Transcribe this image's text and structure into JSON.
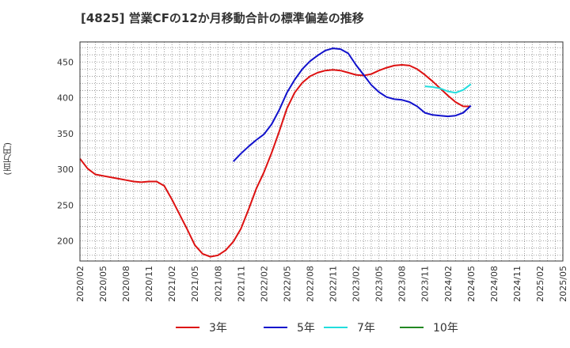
{
  "title": "[4825]  営業CFの12か月移動合計の標準偏差の推移",
  "y_axis_label": "(百万円)",
  "chart_data": {
    "type": "line",
    "x_ticks": [
      "2020/02",
      "2020/05",
      "2020/08",
      "2020/11",
      "2021/02",
      "2021/05",
      "2021/08",
      "2021/11",
      "2022/02",
      "2022/05",
      "2022/08",
      "2022/11",
      "2023/02",
      "2023/05",
      "2023/08",
      "2023/11",
      "2024/02",
      "2024/05",
      "2024/08",
      "2024/11",
      "2025/02",
      "2025/05"
    ],
    "y_ticks": [
      200,
      250,
      300,
      350,
      400,
      450
    ],
    "ylim": [
      172,
      478
    ],
    "grid": true,
    "legend_position": "bottom",
    "series": [
      {
        "name": "3年",
        "color": "#dd1111",
        "points": [
          [
            "2020/02",
            315
          ],
          [
            "2020/03",
            301
          ],
          [
            "2020/04",
            293
          ],
          [
            "2020/05",
            291
          ],
          [
            "2020/06",
            289
          ],
          [
            "2020/07",
            287
          ],
          [
            "2020/08",
            285
          ],
          [
            "2020/09",
            283
          ],
          [
            "2020/10",
            282
          ],
          [
            "2020/11",
            283
          ],
          [
            "2020/12",
            283
          ],
          [
            "2021/01",
            277
          ],
          [
            "2021/02",
            258
          ],
          [
            "2021/03",
            237
          ],
          [
            "2021/04",
            216
          ],
          [
            "2021/05",
            194
          ],
          [
            "2021/06",
            182
          ],
          [
            "2021/07",
            178
          ],
          [
            "2021/08",
            180
          ],
          [
            "2021/09",
            187
          ],
          [
            "2021/10",
            199
          ],
          [
            "2021/11",
            217
          ],
          [
            "2021/12",
            244
          ],
          [
            "2022/01",
            273
          ],
          [
            "2022/02",
            296
          ],
          [
            "2022/03",
            323
          ],
          [
            "2022/04",
            353
          ],
          [
            "2022/05",
            385
          ],
          [
            "2022/06",
            407
          ],
          [
            "2022/07",
            421
          ],
          [
            "2022/08",
            430
          ],
          [
            "2022/09",
            435
          ],
          [
            "2022/10",
            438
          ],
          [
            "2022/11",
            439
          ],
          [
            "2022/12",
            438
          ],
          [
            "2023/01",
            435
          ],
          [
            "2023/02",
            432
          ],
          [
            "2023/03",
            431
          ],
          [
            "2023/04",
            433
          ],
          [
            "2023/05",
            438
          ],
          [
            "2023/06",
            442
          ],
          [
            "2023/07",
            445
          ],
          [
            "2023/08",
            446
          ],
          [
            "2023/09",
            445
          ],
          [
            "2023/10",
            440
          ],
          [
            "2023/11",
            432
          ],
          [
            "2023/12",
            423
          ],
          [
            "2024/01",
            413
          ],
          [
            "2024/02",
            403
          ],
          [
            "2024/03",
            394
          ],
          [
            "2024/04",
            388
          ],
          [
            "2024/05",
            388
          ]
        ]
      },
      {
        "name": "5年",
        "color": "#1111cc",
        "points": [
          [
            "2021/10",
            311
          ],
          [
            "2021/11",
            322
          ],
          [
            "2021/12",
            332
          ],
          [
            "2022/01",
            341
          ],
          [
            "2022/02",
            349
          ],
          [
            "2022/03",
            363
          ],
          [
            "2022/04",
            383
          ],
          [
            "2022/05",
            407
          ],
          [
            "2022/06",
            425
          ],
          [
            "2022/07",
            440
          ],
          [
            "2022/08",
            451
          ],
          [
            "2022/09",
            459
          ],
          [
            "2022/10",
            466
          ],
          [
            "2022/11",
            469
          ],
          [
            "2022/12",
            468
          ],
          [
            "2023/01",
            462
          ],
          [
            "2023/02",
            446
          ],
          [
            "2023/03",
            432
          ],
          [
            "2023/04",
            418
          ],
          [
            "2023/05",
            408
          ],
          [
            "2023/06",
            401
          ],
          [
            "2023/07",
            398
          ],
          [
            "2023/08",
            397
          ],
          [
            "2023/09",
            394
          ],
          [
            "2023/10",
            388
          ],
          [
            "2023/11",
            379
          ],
          [
            "2023/12",
            376
          ],
          [
            "2024/01",
            375
          ],
          [
            "2024/02",
            374
          ],
          [
            "2024/03",
            375
          ],
          [
            "2024/04",
            379
          ],
          [
            "2024/05",
            389
          ]
        ]
      },
      {
        "name": "7年",
        "color": "#22dddd",
        "points": [
          [
            "2023/11",
            416
          ],
          [
            "2023/12",
            415
          ],
          [
            "2024/01",
            413
          ],
          [
            "2024/02",
            409
          ],
          [
            "2024/03",
            407
          ],
          [
            "2024/04",
            411
          ],
          [
            "2024/05",
            419
          ]
        ]
      },
      {
        "name": "10年",
        "color": "#228822",
        "points": []
      }
    ]
  }
}
